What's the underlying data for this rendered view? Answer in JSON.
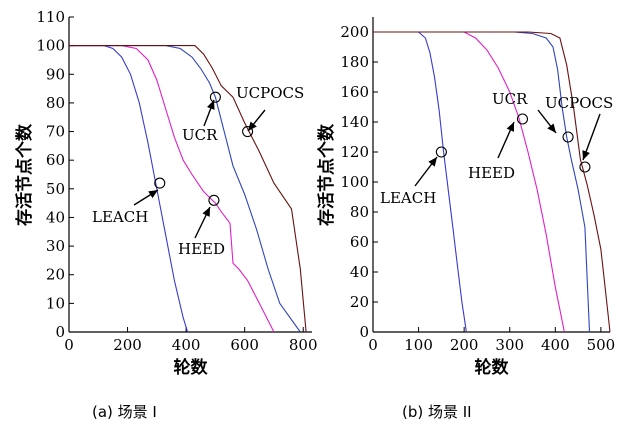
{
  "colors": {
    "LEACH": "#3a3ad0",
    "HEED": "#e020c8",
    "UCR": "#3044b8",
    "UCPOCS": "#6a1010",
    "axis": "#000000"
  },
  "chart_data": [
    {
      "type": "line",
      "caption": "(a) 场景 I",
      "xlabel": "轮数",
      "ylabel": "存活节点个数",
      "xlim": [
        0,
        830
      ],
      "ylim": [
        0,
        110
      ],
      "xticks": [
        0,
        200,
        400,
        600,
        800
      ],
      "yticks": [
        0,
        10,
        20,
        30,
        40,
        50,
        60,
        70,
        80,
        90,
        100,
        110
      ],
      "series": [
        {
          "name": "LEACH",
          "x": [
            0,
            120,
            150,
            180,
            210,
            240,
            270,
            300,
            330,
            360,
            390,
            405
          ],
          "y": [
            100,
            100,
            99,
            96,
            90,
            80,
            66,
            50,
            34,
            18,
            5,
            0
          ]
        },
        {
          "name": "HEED",
          "x": [
            0,
            180,
            230,
            270,
            300,
            330,
            360,
            390,
            420,
            440,
            460,
            480,
            500,
            520,
            550,
            560,
            580,
            610,
            640,
            670,
            700
          ],
          "y": [
            100,
            100,
            99,
            95,
            88,
            78,
            68,
            60,
            55,
            52,
            49,
            47,
            45,
            42,
            38,
            24,
            22,
            18,
            12,
            6,
            0
          ]
        },
        {
          "name": "UCR",
          "x": [
            0,
            330,
            380,
            420,
            450,
            480,
            500,
            530,
            560,
            600,
            640,
            680,
            720,
            790
          ],
          "y": [
            100,
            100,
            99,
            96,
            92,
            87,
            82,
            70,
            58,
            48,
            36,
            22,
            10,
            0
          ]
        },
        {
          "name": "UCPOCS",
          "x": [
            0,
            430,
            460,
            490,
            520,
            560,
            600,
            650,
            700,
            760,
            790,
            810
          ],
          "y": [
            100,
            100,
            97,
            92,
            86,
            82,
            73,
            63,
            52,
            43,
            22,
            0
          ]
        }
      ],
      "annotations": [
        {
          "label": "LEACH",
          "series": "LEACH",
          "x": 310,
          "y": 52
        },
        {
          "label": "HEED",
          "series": "HEED",
          "x": 495,
          "y": 46
        },
        {
          "label": "UCR",
          "series": "UCR",
          "x": 500,
          "y": 82
        },
        {
          "label": "UCPOCS",
          "series": "UCPOCS",
          "x": 610,
          "y": 70
        }
      ]
    },
    {
      "type": "line",
      "caption": "(b) 场景 II",
      "xlabel": "轮数",
      "ylabel": "存活节点个数",
      "xlim": [
        0,
        520
      ],
      "ylim": [
        0,
        210
      ],
      "xticks": [
        0,
        100,
        200,
        300,
        400,
        500
      ],
      "yticks": [
        0,
        20,
        40,
        60,
        80,
        100,
        120,
        140,
        160,
        180,
        200
      ],
      "series": [
        {
          "name": "LEACH",
          "x": [
            0,
            100,
            115,
            125,
            135,
            145,
            155,
            165,
            175,
            185,
            195,
            205
          ],
          "y": [
            200,
            200,
            196,
            186,
            170,
            148,
            120,
            95,
            70,
            45,
            20,
            0
          ]
        },
        {
          "name": "HEED",
          "x": [
            0,
            200,
            225,
            250,
            275,
            300,
            320,
            340,
            360,
            380,
            400,
            420
          ],
          "y": [
            200,
            200,
            196,
            188,
            176,
            160,
            143,
            120,
            95,
            65,
            30,
            0
          ]
        },
        {
          "name": "UCR",
          "x": [
            0,
            310,
            350,
            380,
            395,
            405,
            415,
            425,
            435,
            450,
            465,
            475
          ],
          "y": [
            200,
            200,
            199,
            196,
            190,
            175,
            150,
            130,
            115,
            95,
            70,
            0
          ]
        },
        {
          "name": "UCPOCS",
          "x": [
            0,
            340,
            390,
            410,
            425,
            440,
            455,
            470,
            485,
            500,
            510,
            520
          ],
          "y": [
            200,
            200,
            199,
            196,
            178,
            150,
            115,
            98,
            78,
            55,
            28,
            0
          ]
        }
      ],
      "annotations": [
        {
          "label": "LEACH",
          "series": "LEACH",
          "x": 150,
          "y": 120
        },
        {
          "label": "HEED",
          "series": "HEED",
          "x": 328,
          "y": 142
        },
        {
          "label": "UCR",
          "series": "UCR",
          "x": 428,
          "y": 130
        },
        {
          "label": "UCPOCS",
          "series": "UCPOCS",
          "x": 465,
          "y": 110
        }
      ]
    }
  ]
}
